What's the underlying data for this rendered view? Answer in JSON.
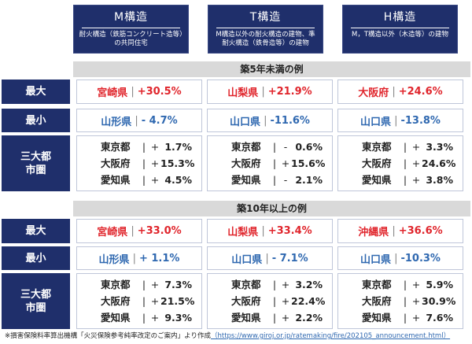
{
  "headers": [
    {
      "title": "M構造",
      "desc": "耐火構造（鉄筋コンクリート造等）の共同住宅"
    },
    {
      "title": "T構造",
      "desc": "M構造以外の耐火構造の建物、準耐火構造（鉄骨造等）の建物"
    },
    {
      "title": "H構造",
      "desc": "M，T構造以外（木造等）の建物"
    }
  ],
  "sections": [
    {
      "title": "築5年未満の例",
      "max_label": "最大",
      "min_label": "最小",
      "metro_label": "三大都市圏",
      "max": [
        {
          "pref": "宮崎県",
          "val": "+30.5%"
        },
        {
          "pref": "山梨県",
          "val": "+21.9%"
        },
        {
          "pref": "大阪府",
          "val": "+24.6%"
        }
      ],
      "min": [
        {
          "pref": "山形県",
          "val": "- 4.7%"
        },
        {
          "pref": "山口県",
          "val": "-11.6%"
        },
        {
          "pref": "山口県",
          "val": "-13.8%"
        }
      ],
      "metro": [
        [
          {
            "pref": "東京都",
            "sign": "+",
            "val": "1.7%"
          },
          {
            "pref": "大阪府",
            "sign": "+",
            "val": "15.3%"
          },
          {
            "pref": "愛知県",
            "sign": "+",
            "val": "4.5%"
          }
        ],
        [
          {
            "pref": "東京都",
            "sign": "-",
            "val": "0.6%"
          },
          {
            "pref": "大阪府",
            "sign": "+",
            "val": "15.6%"
          },
          {
            "pref": "愛知県",
            "sign": "-",
            "val": "2.1%"
          }
        ],
        [
          {
            "pref": "東京都",
            "sign": "+",
            "val": "3.3%"
          },
          {
            "pref": "大阪府",
            "sign": "+",
            "val": "24.6%"
          },
          {
            "pref": "愛知県",
            "sign": "+",
            "val": "3.8%"
          }
        ]
      ]
    },
    {
      "title": "築10年以上の例",
      "max_label": "最大",
      "min_label": "最小",
      "metro_label": "三大都市圏",
      "max": [
        {
          "pref": "宮崎県",
          "val": "+33.0%"
        },
        {
          "pref": "山梨県",
          "val": "+33.4%"
        },
        {
          "pref": "沖縄県",
          "val": "+36.6%"
        }
      ],
      "min": [
        {
          "pref": "山形県",
          "val": "+ 1.1%"
        },
        {
          "pref": "山口県",
          "val": "- 7.1%"
        },
        {
          "pref": "山口県",
          "val": "-10.3%"
        }
      ],
      "metro": [
        [
          {
            "pref": "東京都",
            "sign": "+",
            "val": "7.3%"
          },
          {
            "pref": "大阪府",
            "sign": "+",
            "val": "21.5%"
          },
          {
            "pref": "愛知県",
            "sign": "+",
            "val": "9.3%"
          }
        ],
        [
          {
            "pref": "東京都",
            "sign": "+",
            "val": "3.2%"
          },
          {
            "pref": "大阪府",
            "sign": "+",
            "val": "22.4%"
          },
          {
            "pref": "愛知県",
            "sign": "+",
            "val": "2.2%"
          }
        ],
        [
          {
            "pref": "東京都",
            "sign": "+",
            "val": "5.9%"
          },
          {
            "pref": "大阪府",
            "sign": "+",
            "val": "30.9%"
          },
          {
            "pref": "愛知県",
            "sign": "+",
            "val": "7.6%"
          }
        ]
      ]
    }
  ],
  "footer": {
    "text": "※損害保険料率算出機構「火災保険参考純率改定のご案内」より作成",
    "url": "（https://www.giroj.or.jp/ratemaking/fire/202105_announcement.html）"
  },
  "colors": {
    "navy": "#1f2f6b",
    "red": "#e0252c",
    "blue": "#2f68b0"
  }
}
